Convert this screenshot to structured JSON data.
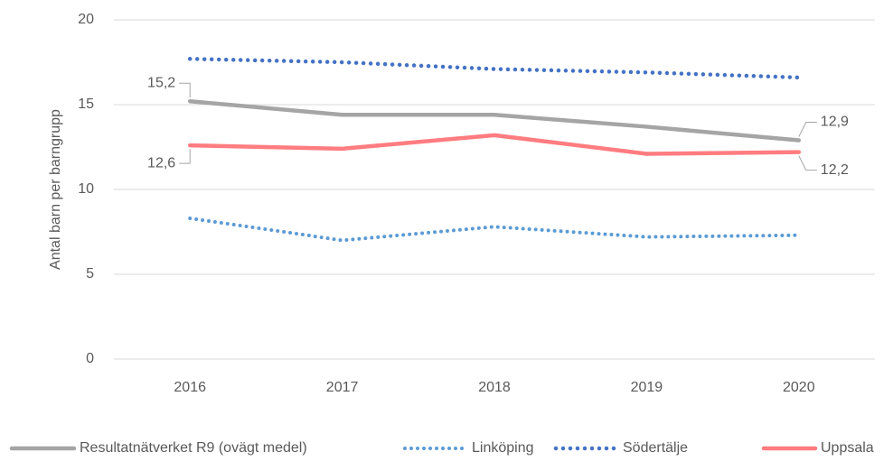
{
  "chart_data": {
    "type": "line",
    "ylabel": "Antal barn per barngrupp",
    "categories": [
      "2016",
      "2017",
      "2018",
      "2019",
      "2020"
    ],
    "ylim": [
      0,
      20
    ],
    "yticks": [
      0,
      5,
      10,
      15,
      20
    ],
    "grid": true,
    "legend": "bottom",
    "series": [
      {
        "name": "Resultatnätverket R9 (ovägt medel)",
        "color": "#a5a5a5",
        "style": "solid",
        "values": [
          15.2,
          14.4,
          14.4,
          13.7,
          12.9
        ],
        "value_labels": [
          "15,2",
          null,
          null,
          null,
          "12,9"
        ]
      },
      {
        "name": "Linköping",
        "color": "#5b9bd5",
        "style": "dotted",
        "values": [
          8.3,
          7.0,
          7.8,
          7.2,
          7.3
        ]
      },
      {
        "name": "Södertälje",
        "color": "#4472c4",
        "style": "dotted",
        "values": [
          17.7,
          17.5,
          17.1,
          16.9,
          16.6
        ]
      },
      {
        "name": "Uppsala",
        "color": "#ff7c80",
        "style": "solid",
        "values": [
          12.6,
          12.4,
          13.2,
          12.1,
          12.2
        ],
        "value_labels": [
          "12,6",
          null,
          null,
          null,
          "12,2"
        ]
      }
    ]
  }
}
